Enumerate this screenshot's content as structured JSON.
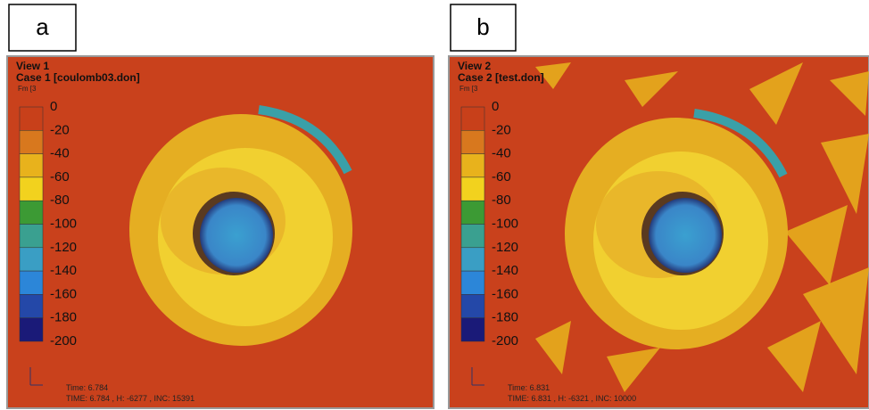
{
  "panels": [
    {
      "label": "a",
      "view": "View 1",
      "case": "Case 1 [coulomb03.don]",
      "legend_title": "Fm [3",
      "legend": [
        "0",
        "-20",
        "-40",
        "-60",
        "-80",
        "-100",
        "-120",
        "-140",
        "-160",
        "-180",
        "-200"
      ],
      "time": "Time: 6.784",
      "status": "TIME: 6.784 , H: -6277 , INC: 15391"
    },
    {
      "label": "b",
      "view": "View 2",
      "case": "Case 2 [test.don]",
      "legend_title": "Fm [3",
      "legend": [
        "0",
        "-20",
        "-40",
        "-60",
        "-80",
        "-100",
        "-120",
        "-140",
        "-160",
        "-180",
        "-200"
      ],
      "time": "Time: 6.831",
      "status": "TIME: 6.831 , H: -6321 , INC: 10000"
    }
  ]
}
